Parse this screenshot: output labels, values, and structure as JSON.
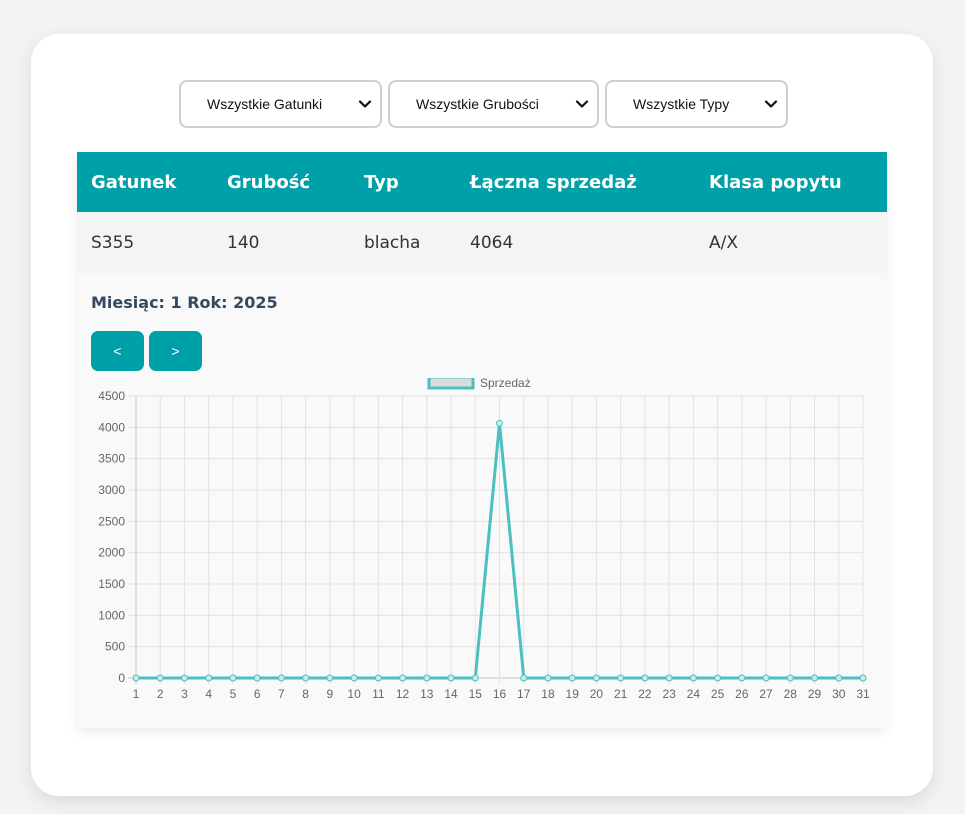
{
  "filters": {
    "species": "Wszystkie Gatunki",
    "thickness": "Wszystkie Grubości",
    "types": "Wszystkie Typy"
  },
  "table": {
    "headers": [
      "Gatunek",
      "Grubość",
      "Typ",
      "Łączna sprzedaż",
      "Klasa popytu"
    ],
    "rows": [
      [
        "S355",
        "140",
        "blacha",
        "4064",
        "A/X"
      ]
    ]
  },
  "period": {
    "label": "Miesiąc: 1 Rok: 2025"
  },
  "nav": {
    "prev_label": "<",
    "next_label": ">"
  },
  "colors": {
    "accent": "#00a0a8",
    "line": "#4bc0c0"
  },
  "chart_data": {
    "type": "line",
    "x": [
      1,
      2,
      3,
      4,
      5,
      6,
      7,
      8,
      9,
      10,
      11,
      12,
      13,
      14,
      15,
      16,
      17,
      18,
      19,
      20,
      21,
      22,
      23,
      24,
      25,
      26,
      27,
      28,
      29,
      30,
      31
    ],
    "series": [
      {
        "name": "Sprzedaż",
        "values": [
          0,
          0,
          0,
          0,
          0,
          0,
          0,
          0,
          0,
          0,
          0,
          0,
          0,
          0,
          0,
          4064,
          0,
          0,
          0,
          0,
          0,
          0,
          0,
          0,
          0,
          0,
          0,
          0,
          0,
          0,
          0
        ]
      }
    ],
    "y_ticks": [
      "0",
      "500",
      "1000",
      "1500",
      "2000",
      "2500",
      "3000",
      "3500",
      "4000",
      "4500"
    ],
    "ylim": [
      0,
      4500
    ],
    "grid": true,
    "legend_position": "top"
  }
}
